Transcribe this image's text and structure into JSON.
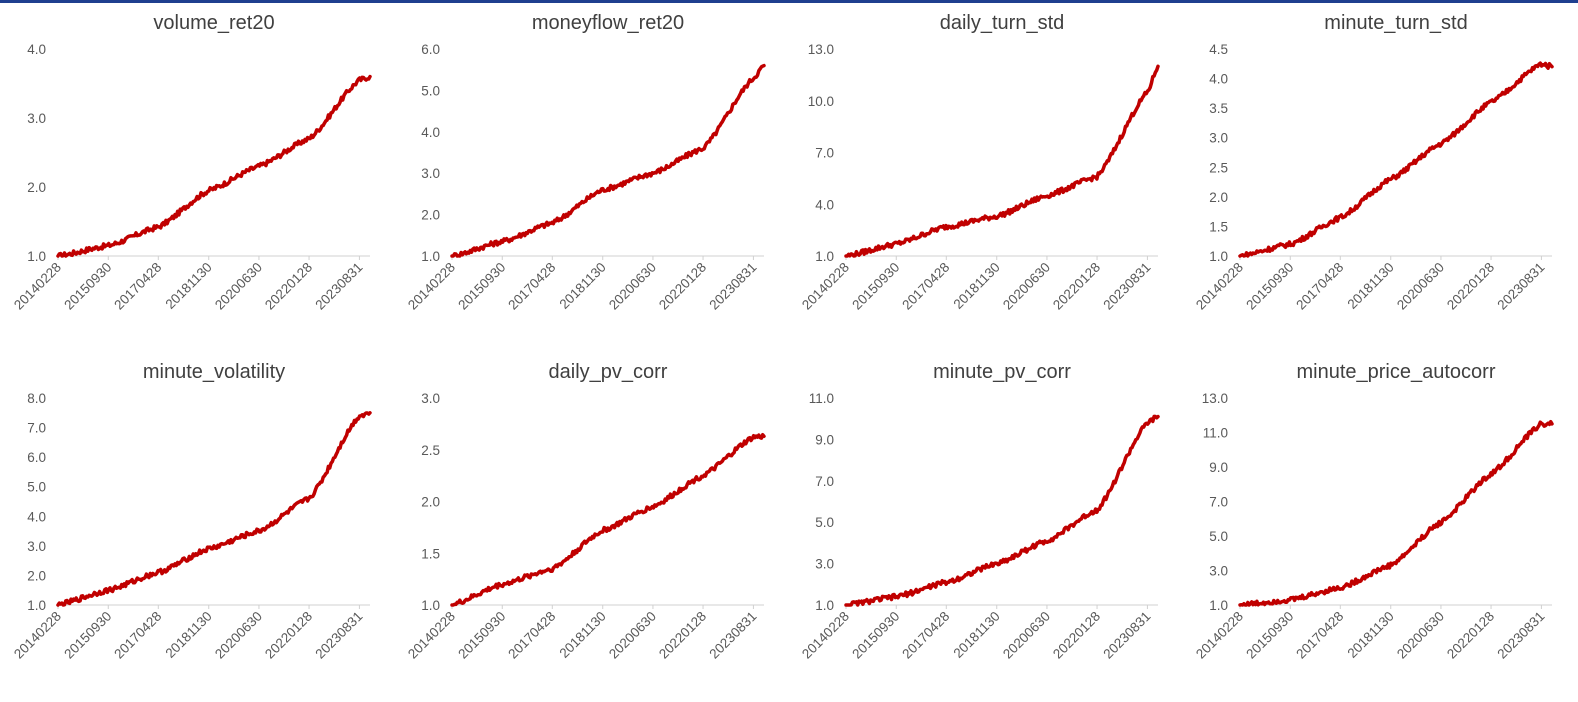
{
  "colors": {
    "series": "#c00000",
    "topbar": "#1f3f8f",
    "text": "#404040",
    "axis": "#d0d0d0"
  },
  "chart_data": [
    {
      "type": "line",
      "title": "volume_ret20",
      "yticks": [
        "4.0",
        "3.0",
        "2.0",
        "1.0"
      ],
      "ylim": [
        1.0,
        4.0
      ],
      "xticks": [
        "20140228",
        "20150930",
        "20170428",
        "20181130",
        "20200630",
        "20220128",
        "20230831"
      ],
      "series": [
        {
          "x": [
            "20140228",
            "20150930",
            "20170428",
            "20181130",
            "20200630",
            "20220128",
            "20230831",
            "20231231"
          ],
          "values": [
            1.0,
            1.15,
            1.42,
            1.95,
            2.3,
            2.7,
            3.55,
            3.6
          ]
        }
      ]
    },
    {
      "type": "line",
      "title": "moneyflow_ret20",
      "yticks": [
        "6.0",
        "5.0",
        "4.0",
        "3.0",
        "2.0",
        "1.0"
      ],
      "ylim": [
        1.0,
        6.0
      ],
      "xticks": [
        "20140228",
        "20150930",
        "20170428",
        "20181130",
        "20200630",
        "20220128",
        "20230831"
      ],
      "series": [
        {
          "x": [
            "20140228",
            "20150930",
            "20170428",
            "20181130",
            "20200630",
            "20220128",
            "20230831",
            "20231231"
          ],
          "values": [
            1.0,
            1.35,
            1.8,
            2.6,
            3.0,
            3.6,
            5.3,
            5.6
          ]
        }
      ]
    },
    {
      "type": "line",
      "title": "daily_turn_std",
      "yticks": [
        "13.0",
        "10.0",
        "7.0",
        "4.0",
        "1.0"
      ],
      "ylim": [
        1.0,
        13.0
      ],
      "xticks": [
        "20140228",
        "20150930",
        "20170428",
        "20181130",
        "20200630",
        "20220128",
        "20230831"
      ],
      "series": [
        {
          "x": [
            "20140228",
            "20150930",
            "20170428",
            "20181130",
            "20200630",
            "20220128",
            "20230831",
            "20231231"
          ],
          "values": [
            1.0,
            1.7,
            2.7,
            3.3,
            4.5,
            5.6,
            10.5,
            12.0
          ]
        }
      ]
    },
    {
      "type": "line",
      "title": "minute_turn_std",
      "yticks": [
        "4.5",
        "4.0",
        "3.5",
        "3.0",
        "2.5",
        "2.0",
        "1.5",
        "1.0"
      ],
      "ylim": [
        1.0,
        4.5
      ],
      "xticks": [
        "20140228",
        "20150930",
        "20170428",
        "20181130",
        "20200630",
        "20220128",
        "20230831"
      ],
      "series": [
        {
          "x": [
            "20140228",
            "20150930",
            "20170428",
            "20181130",
            "20200630",
            "20220128",
            "20230831",
            "20231231"
          ],
          "values": [
            1.0,
            1.2,
            1.65,
            2.3,
            2.9,
            3.6,
            4.25,
            4.2
          ]
        }
      ]
    },
    {
      "type": "line",
      "title": "minute_volatility",
      "yticks": [
        "8.0",
        "7.0",
        "6.0",
        "5.0",
        "4.0",
        "3.0",
        "2.0",
        "1.0"
      ],
      "ylim": [
        1.0,
        8.0
      ],
      "xticks": [
        "20140228",
        "20150930",
        "20170428",
        "20181130",
        "20200630",
        "20220128",
        "20230831"
      ],
      "series": [
        {
          "x": [
            "20140228",
            "20150930",
            "20170428",
            "20181130",
            "20200630",
            "20220128",
            "20230831",
            "20231231"
          ],
          "values": [
            1.0,
            1.5,
            2.1,
            2.9,
            3.5,
            4.6,
            7.4,
            7.5
          ]
        }
      ]
    },
    {
      "type": "line",
      "title": "daily_pv_corr",
      "yticks": [
        "3.0",
        "2.5",
        "2.0",
        "1.5",
        "1.0"
      ],
      "ylim": [
        1.0,
        3.0
      ],
      "xticks": [
        "20140228",
        "20150930",
        "20170428",
        "20181130",
        "20200630",
        "20220128",
        "20230831"
      ],
      "series": [
        {
          "x": [
            "20140228",
            "20150930",
            "20170428",
            "20181130",
            "20200630",
            "20220128",
            "20230831",
            "20231231"
          ],
          "values": [
            1.0,
            1.2,
            1.35,
            1.72,
            1.95,
            2.25,
            2.62,
            2.63
          ]
        }
      ]
    },
    {
      "type": "line",
      "title": "minute_pv_corr",
      "yticks": [
        "11.0",
        "9.0",
        "7.0",
        "5.0",
        "3.0",
        "1.0"
      ],
      "ylim": [
        1.0,
        11.0
      ],
      "xticks": [
        "20140228",
        "20150930",
        "20170428",
        "20181130",
        "20200630",
        "20220128",
        "20230831"
      ],
      "series": [
        {
          "x": [
            "20140228",
            "20150930",
            "20170428",
            "20181130",
            "20200630",
            "20220128",
            "20230831",
            "20231231"
          ],
          "values": [
            1.0,
            1.4,
            2.1,
            3.0,
            4.1,
            5.6,
            9.8,
            10.1
          ]
        }
      ]
    },
    {
      "type": "line",
      "title": "minute_price_autocorr",
      "yticks": [
        "13.0",
        "11.0",
        "9.0",
        "7.0",
        "5.0",
        "3.0",
        "1.0"
      ],
      "ylim": [
        1.0,
        13.0
      ],
      "xticks": [
        "20140228",
        "20150930",
        "20170428",
        "20181130",
        "20200630",
        "20220128",
        "20230831"
      ],
      "series": [
        {
          "x": [
            "20140228",
            "20150930",
            "20170428",
            "20181130",
            "20200630",
            "20220128",
            "20230831",
            "20231231"
          ],
          "values": [
            1.0,
            1.3,
            2.0,
            3.3,
            5.8,
            8.6,
            11.5,
            11.5
          ]
        }
      ]
    }
  ]
}
